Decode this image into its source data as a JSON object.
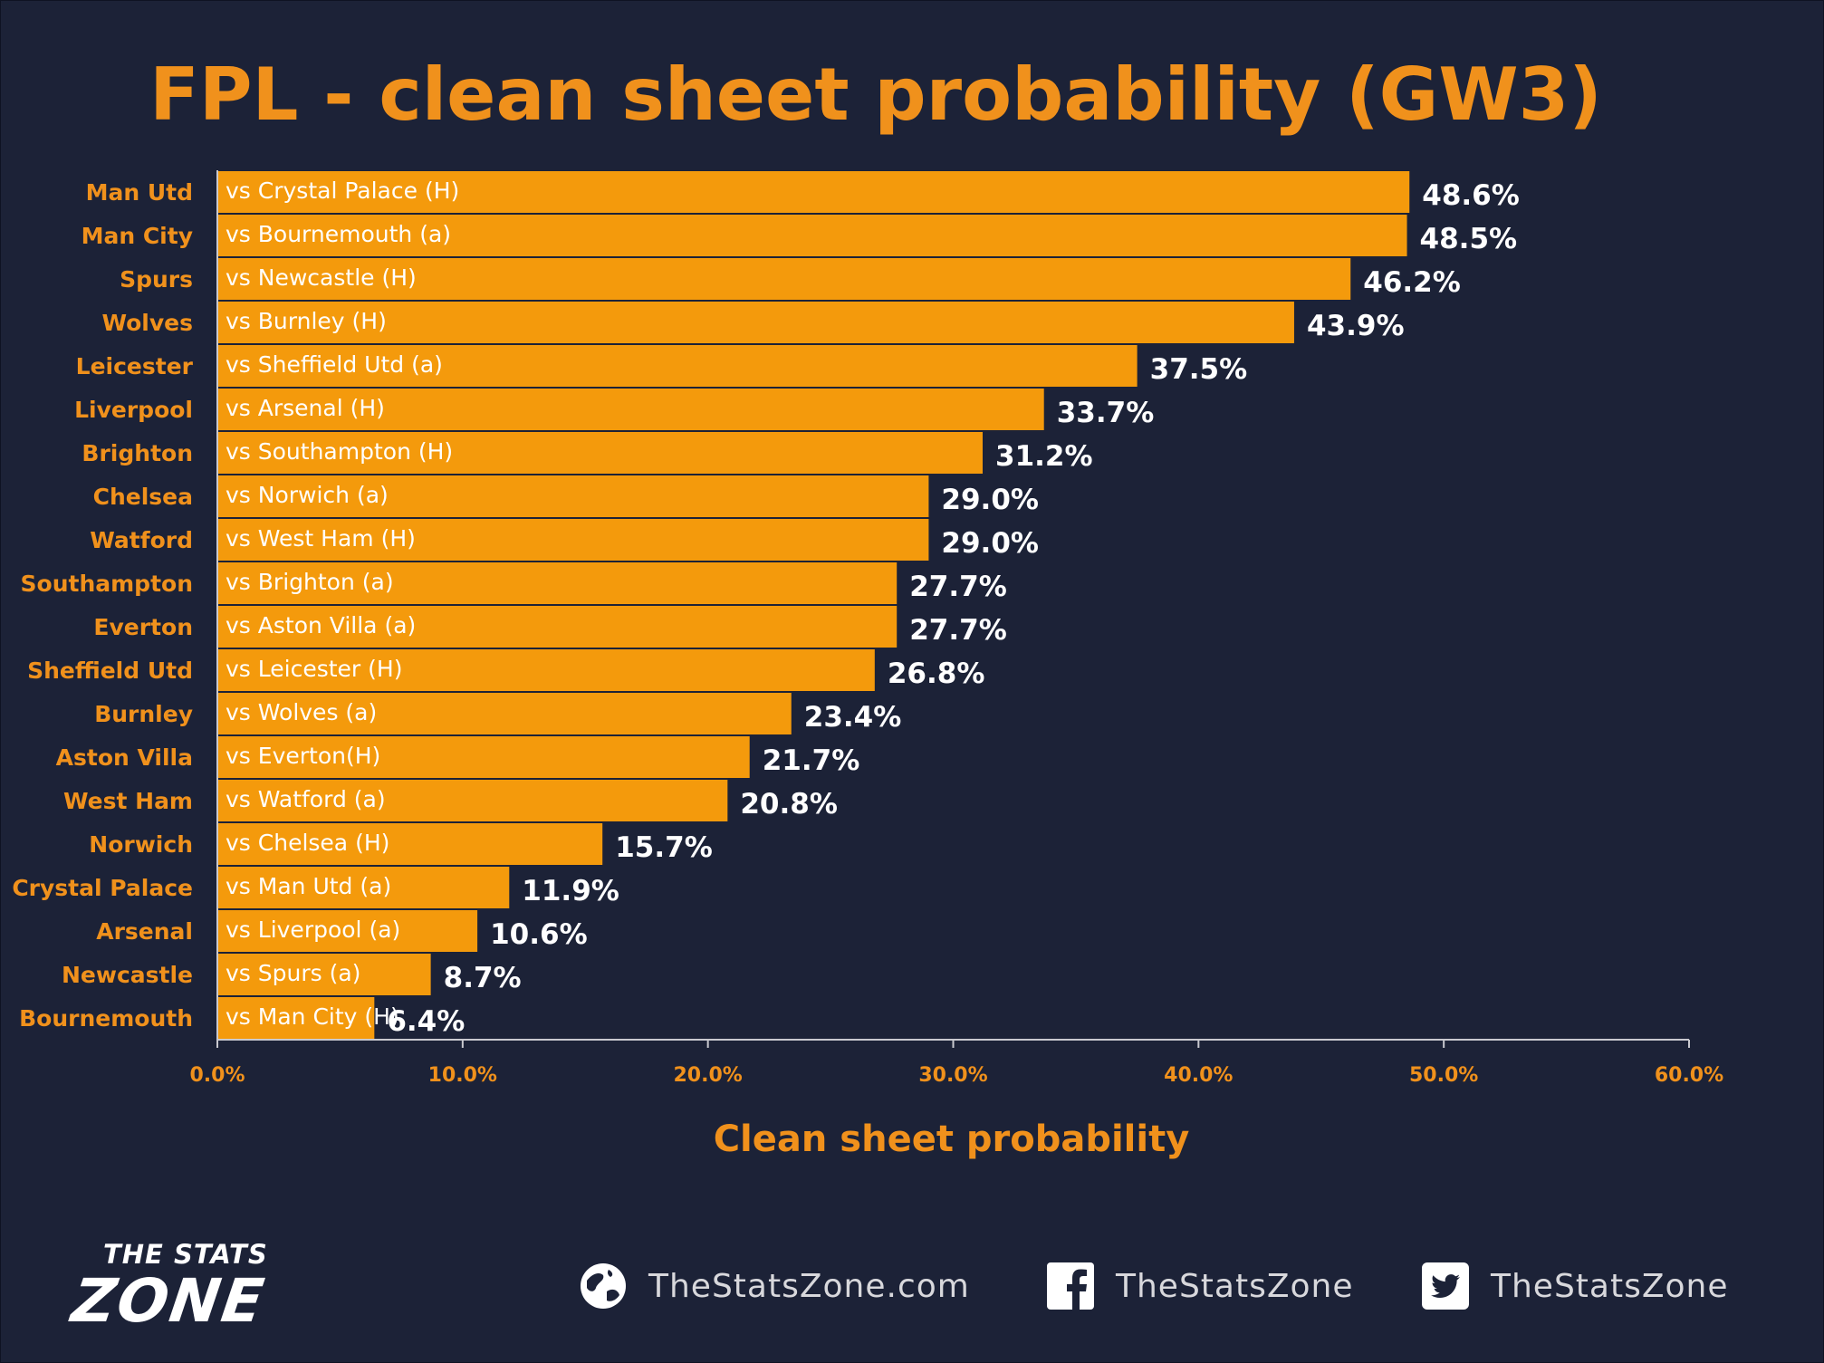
{
  "title": "FPL - clean sheet probability (GW3)",
  "colors": {
    "background": "#1c2237",
    "bar": "#f49a0c",
    "accent_text": "#f0911c",
    "value_text": "#ffffff"
  },
  "chart_data": {
    "type": "bar",
    "orientation": "horizontal",
    "title": "FPL - clean sheet probability (GW3)",
    "xlabel": "Clean sheet probability",
    "ylabel": "",
    "xlim": [
      0,
      60
    ],
    "x_ticks": [
      "0.0%",
      "10.0%",
      "20.0%",
      "30.0%",
      "40.0%",
      "50.0%",
      "60.0%"
    ],
    "grid": false,
    "legend": "none",
    "categories": [
      "Man Utd",
      "Man City",
      "Spurs",
      "Wolves",
      "Leicester",
      "Liverpool",
      "Brighton",
      "Chelsea",
      "Watford",
      "Southampton",
      "Everton",
      "Sheffield Utd",
      "Burnley",
      "Aston Villa",
      "West Ham",
      "Norwich",
      "Crystal Palace",
      "Arsenal",
      "Newcastle",
      "Bournemouth"
    ],
    "fixtures": [
      "vs Crystal Palace (H)",
      "vs Bournemouth (a)",
      "vs Newcastle (H)",
      "vs Burnley (H)",
      "vs Sheffield Utd (a)",
      "vs Arsenal (H)",
      "vs Southampton (H)",
      "vs Norwich (a)",
      "vs West Ham (H)",
      "vs Brighton (a)",
      "vs Aston Villa (a)",
      "vs Leicester (H)",
      "vs Wolves (a)",
      "vs Everton(H)",
      "vs Watford (a)",
      "vs Chelsea (H)",
      "vs Man Utd (a)",
      "vs Liverpool (a)",
      "vs Spurs (a)",
      "vs Man City (H)"
    ],
    "values": [
      48.6,
      48.5,
      46.2,
      43.9,
      37.5,
      33.7,
      31.2,
      29.0,
      29.0,
      27.7,
      27.7,
      26.8,
      23.4,
      21.7,
      20.8,
      15.7,
      11.9,
      10.6,
      8.7,
      6.4
    ],
    "value_labels": [
      "48.6%",
      "48.5%",
      "46.2%",
      "43.9%",
      "37.5%",
      "33.7%",
      "31.2%",
      "29.0%",
      "29.0%",
      "27.7%",
      "27.7%",
      "26.8%",
      "23.4%",
      "21.7%",
      "20.8%",
      "15.7%",
      "11.9%",
      "10.6%",
      "8.7%",
      "6.4%"
    ]
  },
  "footer": {
    "logo_top": "THE STATS",
    "logo_bottom": "ZONE",
    "website": "TheStatsZone.com",
    "facebook": "TheStatsZone",
    "twitter": "TheStatsZone",
    "icons": [
      "globe-icon",
      "facebook-icon",
      "twitter-icon"
    ]
  }
}
